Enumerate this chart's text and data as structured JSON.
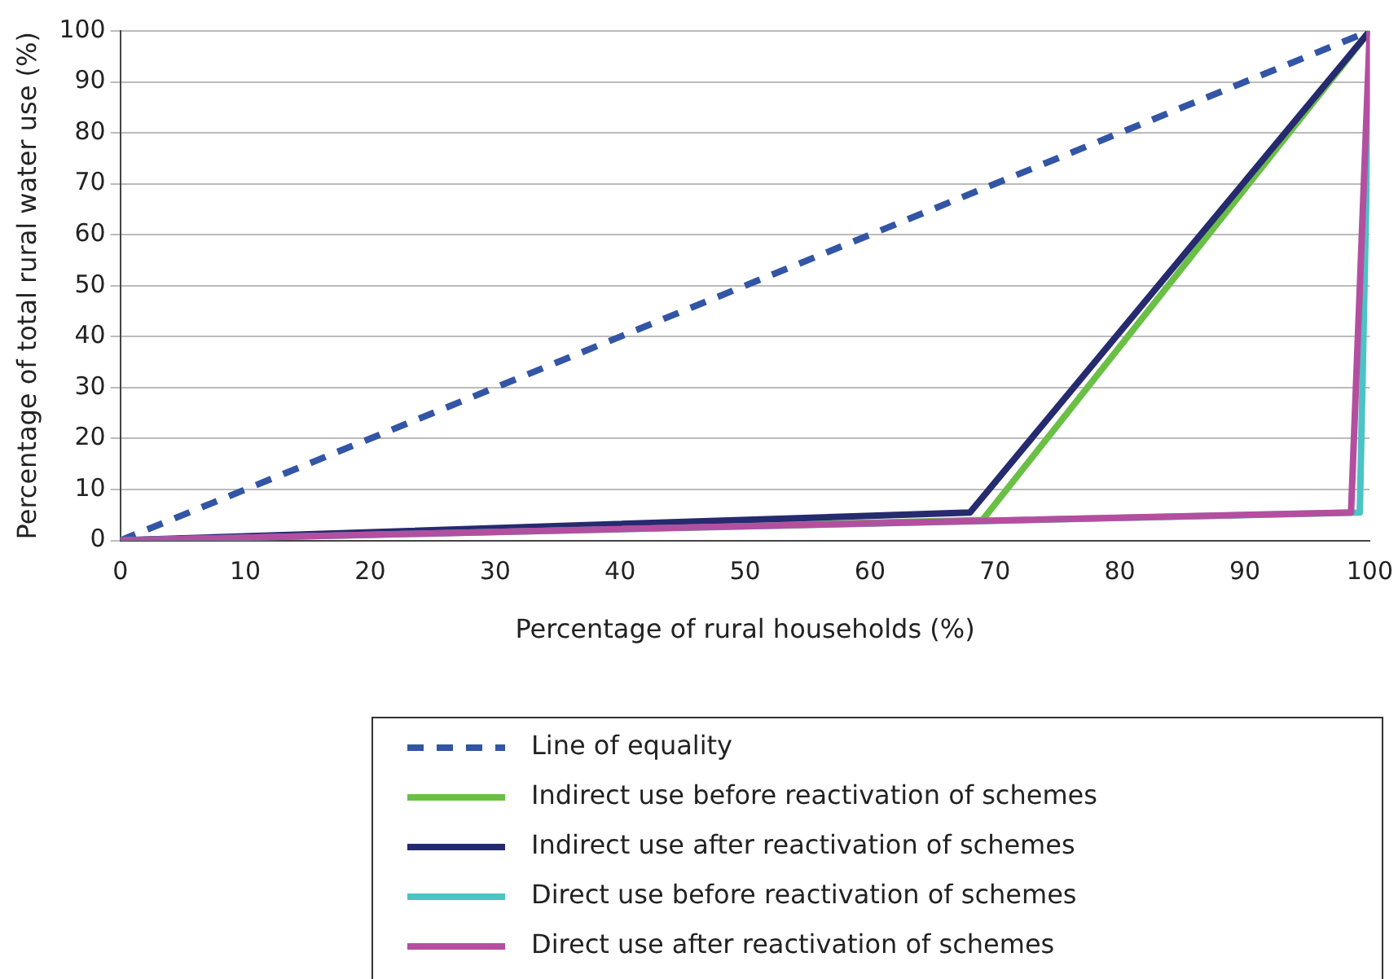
{
  "chart_data": {
    "type": "line",
    "xlabel": "Percentage of rural households (%)",
    "ylabel": "Percentage of total rural water use (%)",
    "xlim": [
      0,
      100
    ],
    "xticks": [
      0,
      10,
      20,
      30,
      40,
      50,
      60,
      70,
      80,
      90,
      100
    ],
    "ylim": [
      0,
      100
    ],
    "yticks": [
      0,
      10,
      20,
      30,
      40,
      50,
      60,
      70,
      80,
      90,
      100
    ],
    "grid": "y",
    "legend": "bottom",
    "marker": "none",
    "series": [
      {
        "name": "Line of equality",
        "color": "#3355a5",
        "line_style": "dashed",
        "x": [
          0,
          100
        ],
        "values": [
          0,
          100
        ]
      },
      {
        "name": "Indirect use before reactivation of schemes",
        "color": "#6abf45",
        "x": [
          0,
          69,
          100
        ],
        "values": [
          0,
          4,
          100
        ]
      },
      {
        "name": "Indirect use after reactivation of schemes",
        "color": "#262a6e",
        "x": [
          0,
          68,
          100
        ],
        "values": [
          0,
          5.5,
          100
        ]
      },
      {
        "name": "Direct use before reactivation of schemes",
        "color": "#4cc3c4",
        "x": [
          0,
          99.2,
          100
        ],
        "values": [
          0,
          5.5,
          100
        ]
      },
      {
        "name": "Direct use after reactivation of schemes",
        "color": "#b44fa0",
        "x": [
          0,
          98.5,
          100
        ],
        "values": [
          0,
          5.5,
          100
        ]
      }
    ]
  }
}
